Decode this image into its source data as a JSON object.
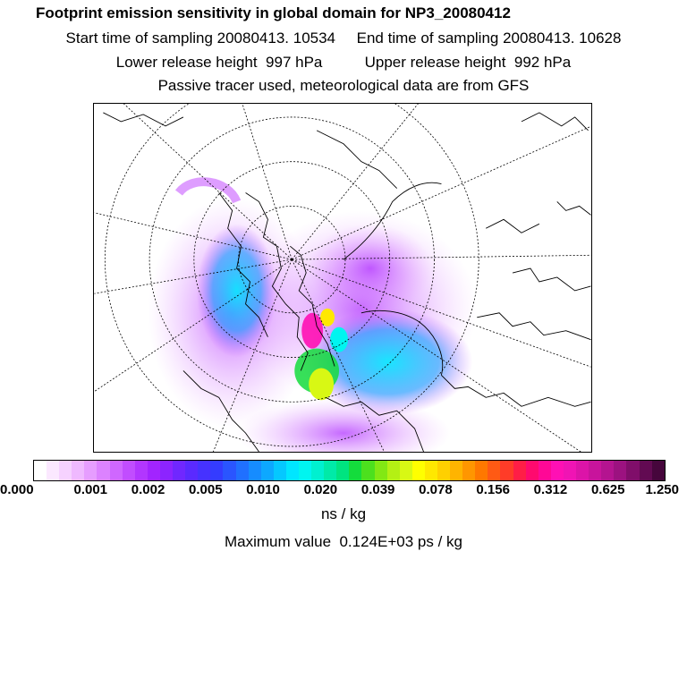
{
  "header": {
    "title": "Footprint emission sensitivity in global domain for NP3_20080412",
    "line1": "Start time of sampling 20080413. 10534     End time of sampling 20080413. 10628",
    "line2": "Lower release height  997 hPa          Upper release height  992 hPa",
    "line3": "Passive tracer used, meteorological data are from GFS"
  },
  "colorbar": {
    "colors": [
      "#ffffff",
      "#fbe8ff",
      "#f6d2ff",
      "#efb9ff",
      "#e69dff",
      "#dc82ff",
      "#cf67ff",
      "#c14dff",
      "#b236ff",
      "#a224ff",
      "#8c24ff",
      "#7027ff",
      "#5a2aff",
      "#4632ff",
      "#343cff",
      "#2a55ff",
      "#2070ff",
      "#168cff",
      "#0da8ff",
      "#05c8ff",
      "#00e6ff",
      "#00f5f0",
      "#00f0d0",
      "#00eaa8",
      "#00e480",
      "#14dc3c",
      "#4ce01e",
      "#82e814",
      "#b4f014",
      "#d8f814",
      "#ffff00",
      "#ffe800",
      "#ffd000",
      "#ffb400",
      "#ff9600",
      "#ff7800",
      "#ff5a14",
      "#ff3c28",
      "#ff1e46",
      "#ff0a6e",
      "#ff0896",
      "#ff10b4",
      "#f014b4",
      "#dc14a8",
      "#c8149c",
      "#b41490",
      "#9c1280",
      "#800e6a",
      "#620a52",
      "#46063c"
    ],
    "tick_labels": [
      "0.000",
      "0.001",
      "0.002",
      "0.005",
      "0.010",
      "0.020",
      "0.039",
      "0.078",
      "0.156",
      "0.312",
      "0.625",
      "1.250"
    ],
    "major_divisions": 11
  },
  "unit_label": "ns / kg",
  "max_value_text": "Maximum value  0.124E+03 ps / kg",
  "map": {
    "projection": "polar stereographic, north pole",
    "background_color": "#ffffff",
    "coastline_color": "#000000"
  }
}
